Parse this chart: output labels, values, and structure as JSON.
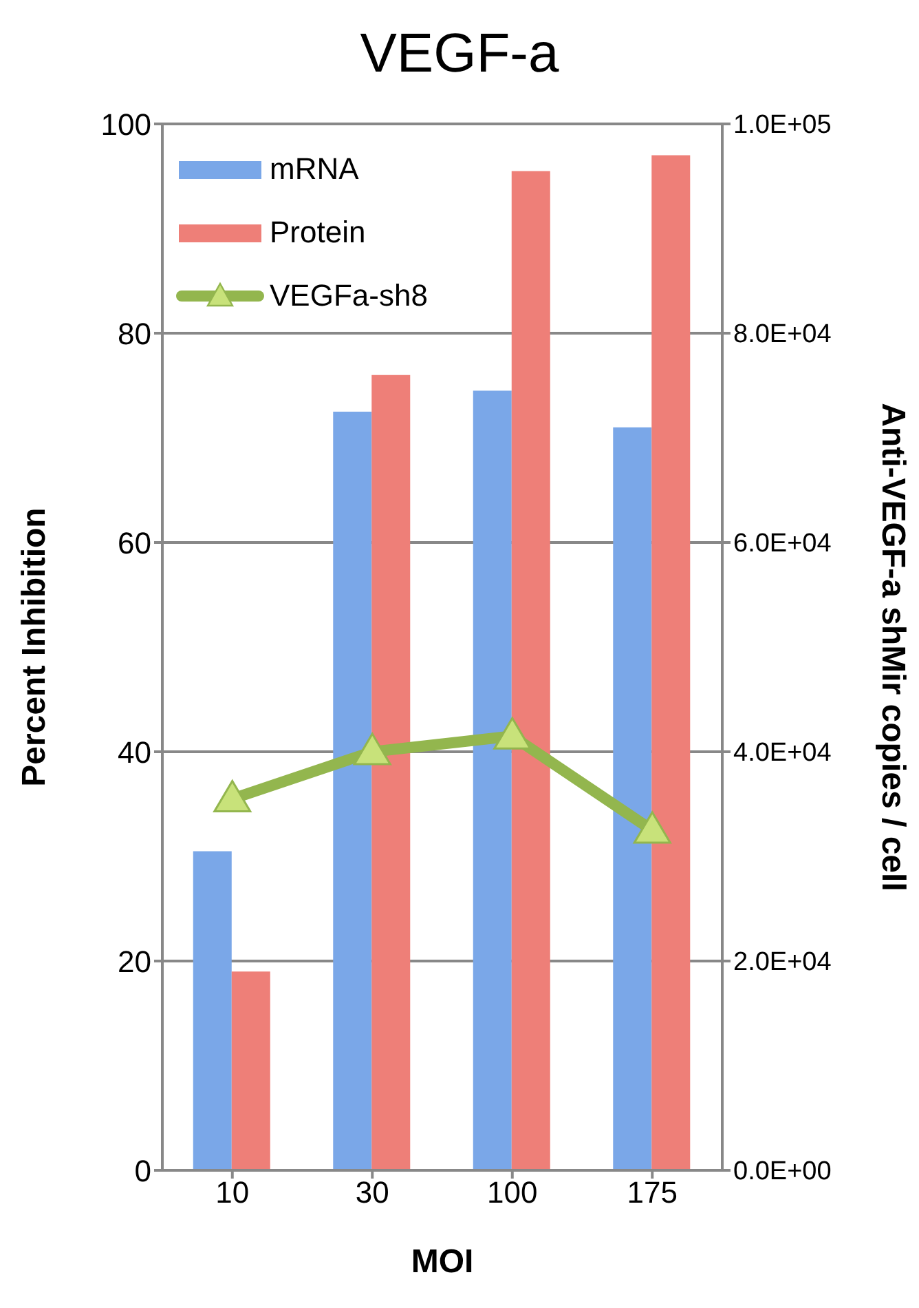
{
  "chart_data": {
    "type": "bar",
    "title": "VEGF-a",
    "xlabel": "MOI",
    "ylabel": "Percent Inhibition",
    "y2label": "Anti-VEGF-a shMir copies / cell",
    "categories": [
      "10",
      "30",
      "100",
      "175"
    ],
    "series": [
      {
        "name": "mRNA",
        "color": "#7aa7e8",
        "values": [
          30.5,
          72.5,
          74.5,
          71
        ]
      },
      {
        "name": "Protein",
        "color": "#ee7f78",
        "values": [
          19,
          76,
          95.5,
          97
        ]
      },
      {
        "name": "VEGFa-sh8",
        "type": "line",
        "axis": "y2",
        "color": "#93b64e",
        "marker": "triangle",
        "values": [
          35500,
          40000,
          41500,
          32500
        ]
      }
    ],
    "ylim": [
      0,
      100
    ],
    "yticks": [
      0,
      20,
      40,
      60,
      80,
      100
    ],
    "y2lim": [
      0,
      100000
    ],
    "y2ticks": [
      {
        "value": 0,
        "label": "0.0E+00"
      },
      {
        "value": 20000,
        "label": "2.0E+04"
      },
      {
        "value": 40000,
        "label": "4.0E+04"
      },
      {
        "value": 60000,
        "label": "6.0E+04"
      },
      {
        "value": 80000,
        "label": "8.0E+04"
      },
      {
        "value": 100000,
        "label": "1.0E+05"
      }
    ],
    "grid": "y",
    "legend": "top left"
  }
}
